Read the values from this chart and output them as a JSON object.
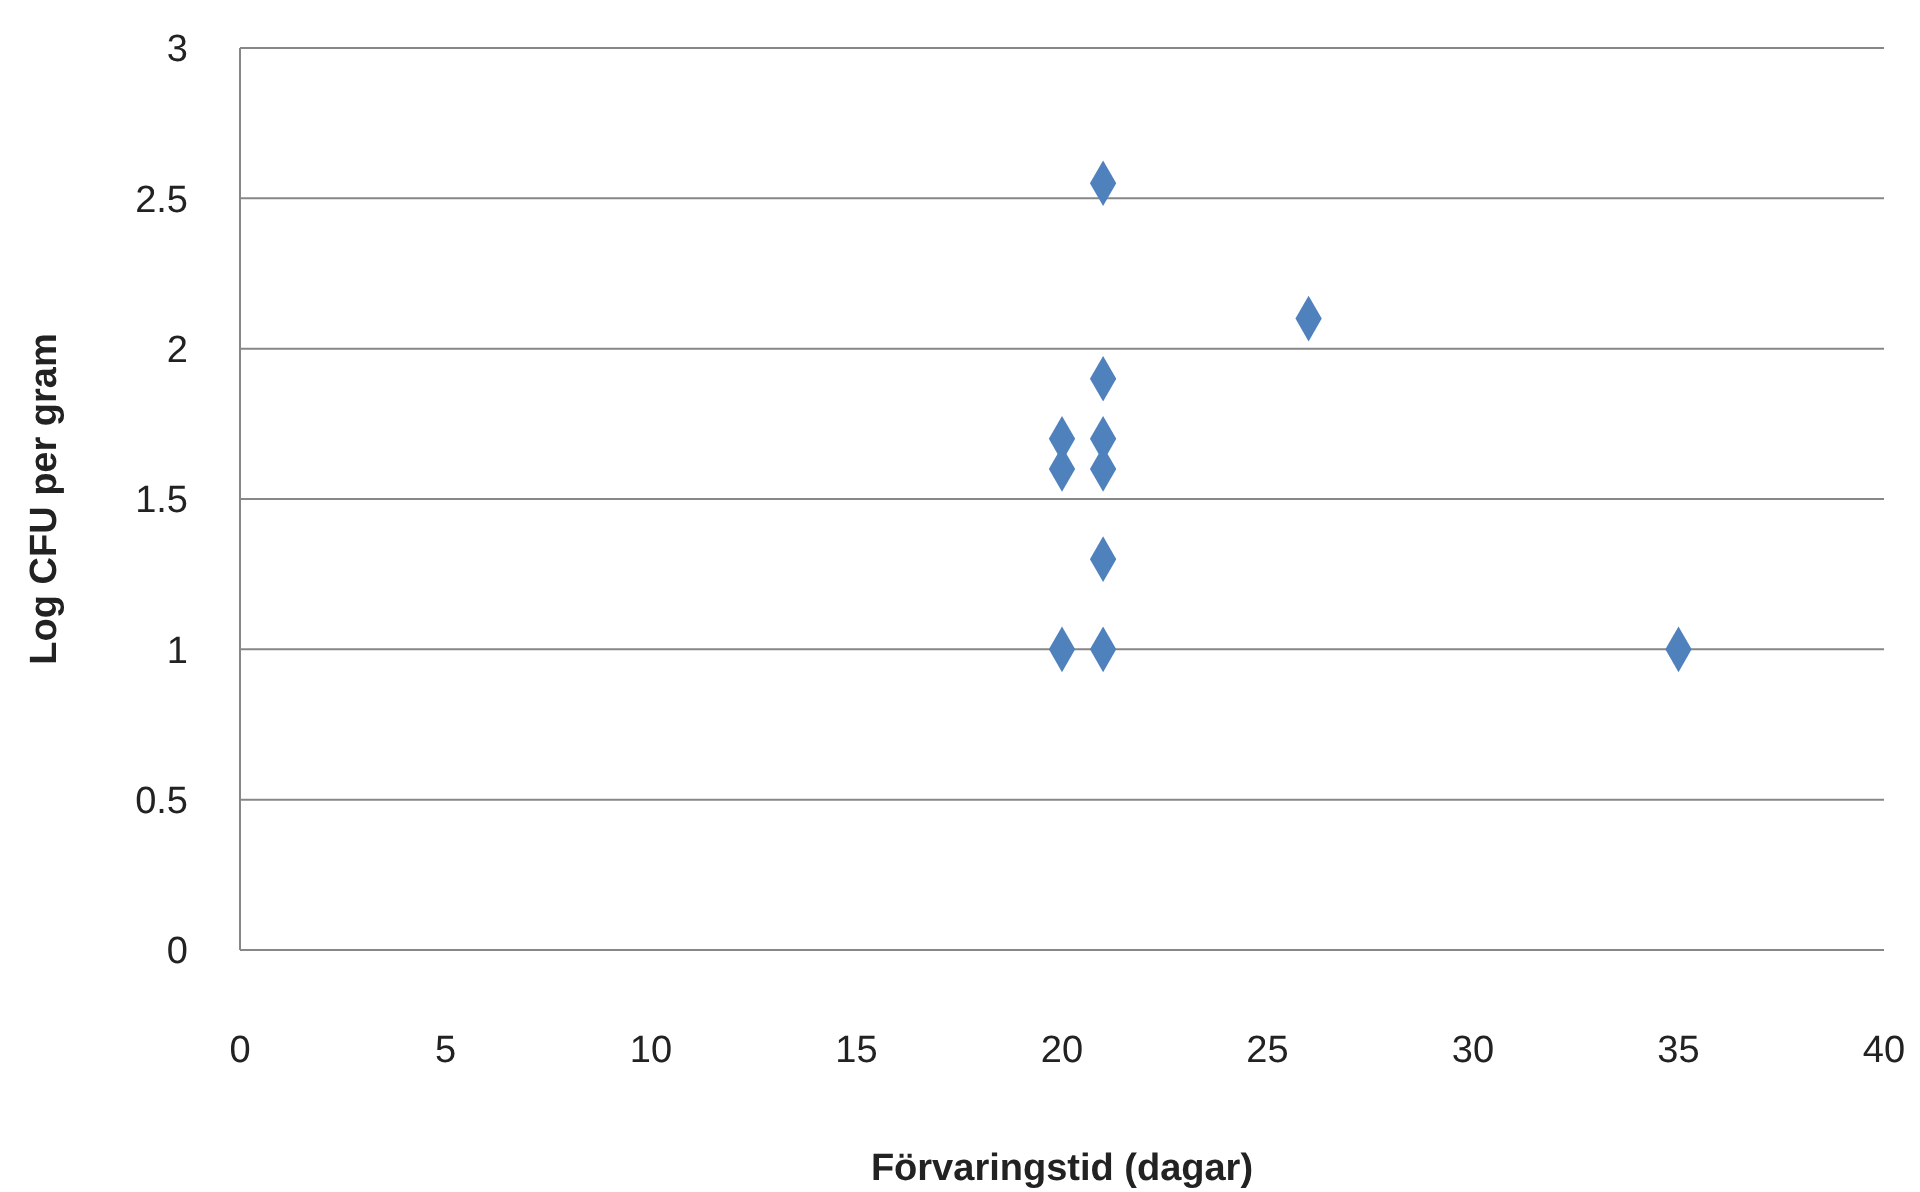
{
  "chart_data": {
    "type": "scatter",
    "xlabel": "Förvaringstid (dagar)",
    "ylabel": "Log CFU per gram",
    "x": [
      20,
      20,
      20,
      21,
      21,
      21,
      21,
      21,
      21,
      26,
      35
    ],
    "values": [
      1.7,
      1.6,
      1.0,
      2.55,
      1.9,
      1.7,
      1.6,
      1.3,
      1.0,
      2.1,
      1.0
    ],
    "color": "#4f81bd",
    "marker": "diamond",
    "xlim": [
      0,
      40
    ],
    "xticks": [
      0,
      5,
      10,
      15,
      20,
      25,
      30,
      35,
      40
    ],
    "ylim": [
      0,
      3
    ],
    "yticks": [
      0,
      0.5,
      1,
      1.5,
      2,
      2.5,
      3
    ],
    "grid": "y"
  }
}
